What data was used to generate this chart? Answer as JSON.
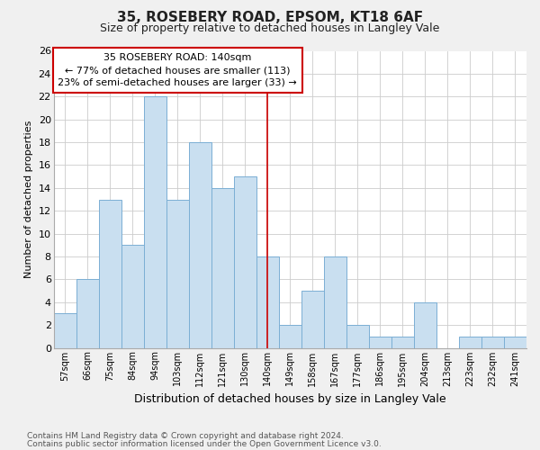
{
  "title": "35, ROSEBERY ROAD, EPSOM, KT18 6AF",
  "subtitle": "Size of property relative to detached houses in Langley Vale",
  "xlabel": "Distribution of detached houses by size in Langley Vale",
  "ylabel": "Number of detached properties",
  "categories": [
    "57sqm",
    "66sqm",
    "75sqm",
    "84sqm",
    "94sqm",
    "103sqm",
    "112sqm",
    "121sqm",
    "130sqm",
    "140sqm",
    "149sqm",
    "158sqm",
    "167sqm",
    "177sqm",
    "186sqm",
    "195sqm",
    "204sqm",
    "213sqm",
    "223sqm",
    "232sqm",
    "241sqm"
  ],
  "values": [
    3,
    6,
    13,
    9,
    22,
    13,
    18,
    14,
    15,
    8,
    2,
    5,
    8,
    2,
    1,
    1,
    4,
    0,
    1,
    1,
    1
  ],
  "bar_color": "#c9dff0",
  "bar_edge_color": "#7bafd4",
  "highlight_index": 9,
  "highlight_line_color": "#cc0000",
  "annotation_title": "35 ROSEBERY ROAD: 140sqm",
  "annotation_line1": "← 77% of detached houses are smaller (113)",
  "annotation_line2": "23% of semi-detached houses are larger (33) →",
  "annotation_box_color": "#cc0000",
  "ylim": [
    0,
    26
  ],
  "yticks": [
    0,
    2,
    4,
    6,
    8,
    10,
    12,
    14,
    16,
    18,
    20,
    22,
    24,
    26
  ],
  "footnote1": "Contains HM Land Registry data © Crown copyright and database right 2024.",
  "footnote2": "Contains public sector information licensed under the Open Government Licence v3.0.",
  "bg_color": "#f0f0f0",
  "plot_bg_color": "#ffffff",
  "grid_color": "#cccccc"
}
